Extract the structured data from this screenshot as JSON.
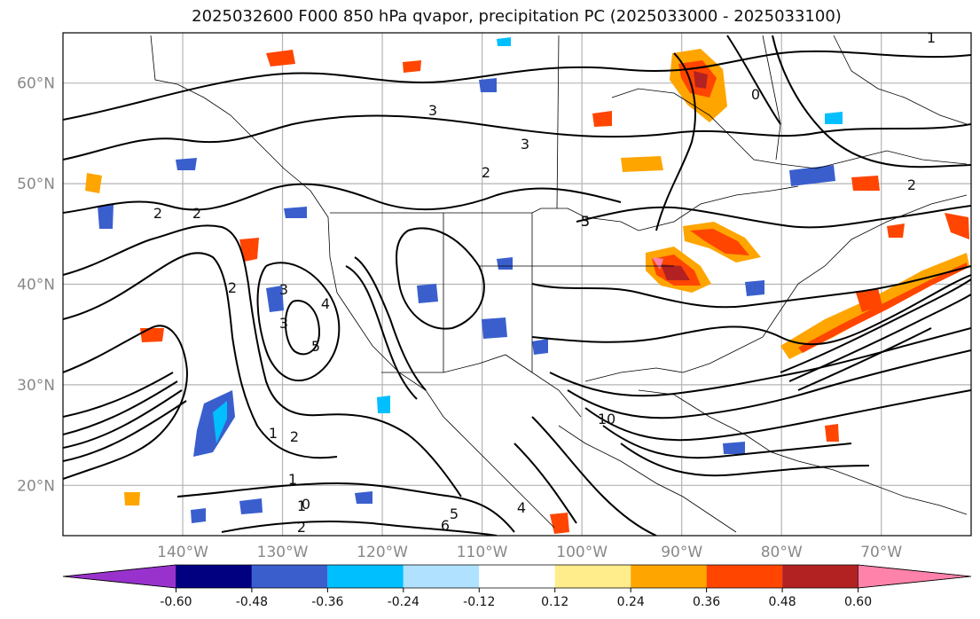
{
  "title": "2025032600 F000 850 hPa qvapor, precipitation PC (2025033000 - 2025033100)",
  "map": {
    "lon_range": [
      -152,
      -61
    ],
    "lat_range": [
      15,
      65
    ],
    "lon_ticks": [
      {
        "value": -140,
        "label": "140°W"
      },
      {
        "value": -130,
        "label": "130°W"
      },
      {
        "value": -120,
        "label": "120°W"
      },
      {
        "value": -110,
        "label": "110°W"
      },
      {
        "value": -100,
        "label": "100°W"
      },
      {
        "value": -90,
        "label": "90°W"
      },
      {
        "value": -80,
        "label": "80°W"
      },
      {
        "value": -70,
        "label": "70°W"
      }
    ],
    "lat_ticks": [
      {
        "value": 20,
        "label": "20°N"
      },
      {
        "value": 30,
        "label": "30°N"
      },
      {
        "value": 40,
        "label": "40°N"
      },
      {
        "value": 50,
        "label": "50°N"
      },
      {
        "value": 60,
        "label": "60°N"
      }
    ],
    "contour_labels": [
      "3",
      "3",
      "2",
      "2",
      "2",
      "3",
      "4",
      "5",
      "3",
      "2",
      "1",
      "2",
      "1",
      "0",
      "2",
      "6",
      "5",
      "4",
      "10",
      "5",
      "0",
      "1",
      "3",
      "2",
      "1"
    ]
  },
  "colorbar": {
    "ticks": [
      "-0.60",
      "-0.48",
      "-0.36",
      "-0.24",
      "-0.12",
      "0.12",
      "0.24",
      "0.36",
      "0.48",
      "0.60"
    ],
    "under_color": "#9932cc",
    "colors": [
      "#000080",
      "#3a5fcd",
      "#00bfff",
      "#b0e2ff",
      "#ffffff",
      "#ffec8b",
      "#ffa500",
      "#ff4500",
      "#b22222"
    ],
    "over_color": "#ff82ab"
  },
  "colors": {
    "grid": "#b4b4b4",
    "contour": "#000000",
    "tick_label": "#888888"
  }
}
